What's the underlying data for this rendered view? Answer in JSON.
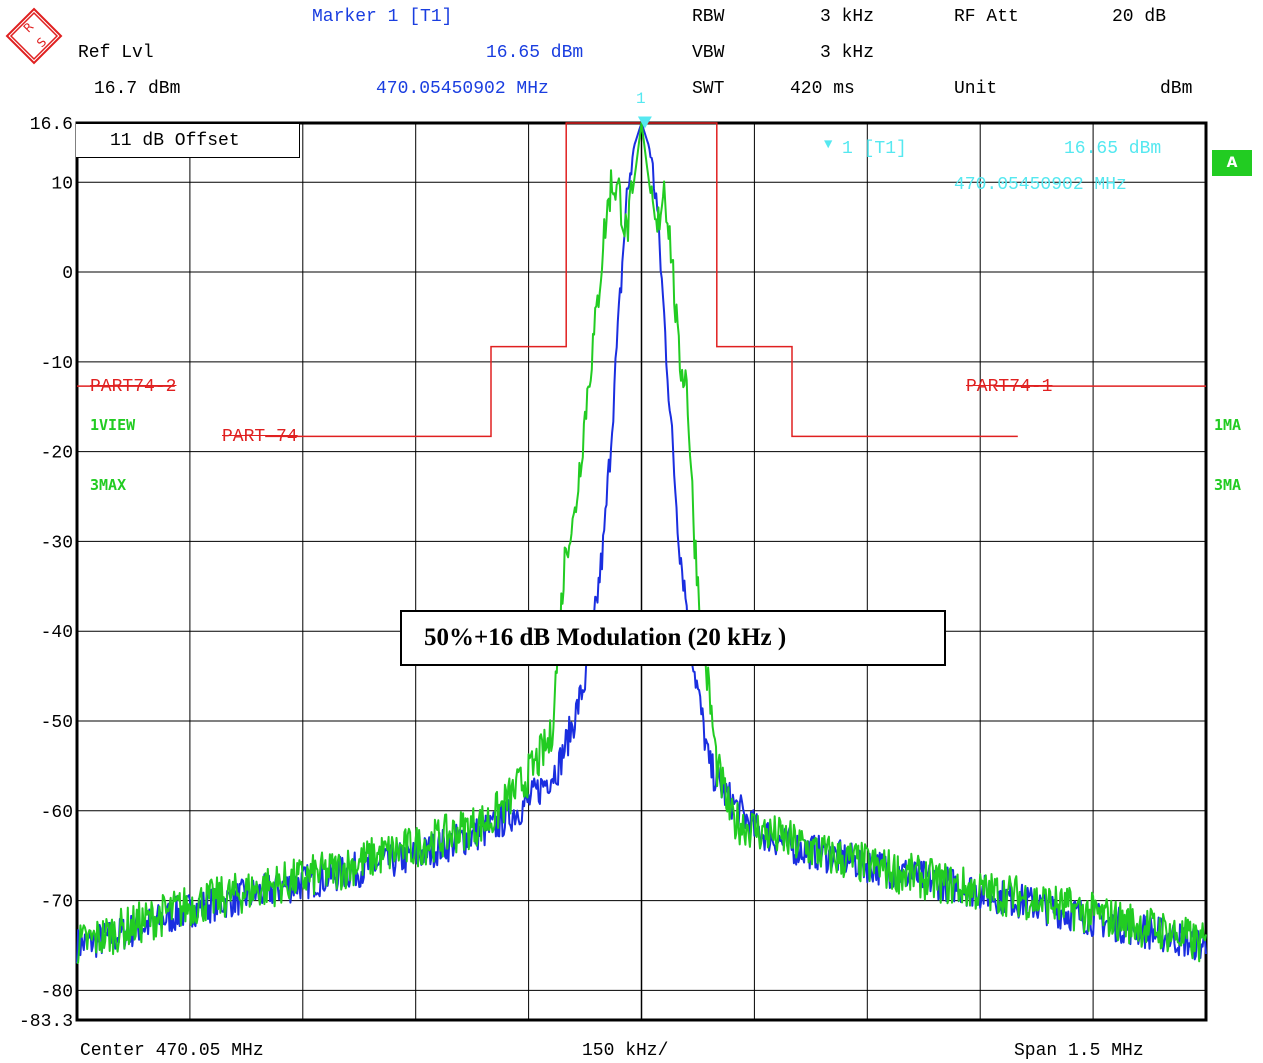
{
  "header": {
    "marker_title": "Marker 1 [T1]",
    "ref_lvl_label": "Ref Lvl",
    "ref_lvl_value": "16.7 dBm",
    "marker_level": "16.65 dBm",
    "marker_freq": "470.05450902 MHz",
    "rbw_label": "RBW",
    "rbw_value": "3 kHz",
    "vbw_label": "VBW",
    "vbw_value": "3 kHz",
    "swt_label": "SWT",
    "swt_value": "420 ms",
    "rfatt_label": "RF Att",
    "rfatt_value": "20 dB",
    "unit_label": "Unit",
    "unit_value": "dBm",
    "logo_text": "R&S"
  },
  "annotations": {
    "offset": "11 dB Offset",
    "marker_id": "1",
    "marker_box_name": "1 [T1]",
    "marker_box_level": "16.65 dBm",
    "marker_box_freq": "470.05450902 MHz",
    "badge": "A",
    "trace1_left": "1VIEW",
    "trace3_left": "3MAX",
    "trace1_right": "1MA",
    "trace3_right": "3MA",
    "limit_left2": "PART74-2",
    "limit_right1": "PART74-1",
    "limit_part": "PART-74",
    "box_text": "50%+16 dB Modulation (20 kHz )"
  },
  "footer": {
    "center": "Center 470.05 MHz",
    "div": "150 kHz/",
    "span": "Span 1.5 MHz"
  },
  "colors": {
    "trace_green": "#22cc22",
    "trace_blue": "#1a2ee0",
    "limit_red": "#e02020",
    "marker_cyan": "#55e8f0"
  },
  "chart_data": {
    "type": "line",
    "xlabel": "",
    "ylabel": "",
    "x_range_mhz": [
      469.3,
      470.8
    ],
    "y_range_dbm": [
      -83.3,
      16.6
    ],
    "y_ticks": [
      "16.6",
      "10",
      "0",
      "-10",
      "-20",
      "-30",
      "-40",
      "-50",
      "-60",
      "-70",
      "-80",
      "-83.3"
    ],
    "grid": true,
    "series": [
      {
        "name": "1VIEW",
        "color": "#1a2ee0",
        "x_offset_khz": [
          -750,
          -700,
          -650,
          -600,
          -550,
          -500,
          -450,
          -400,
          -350,
          -300,
          -250,
          -200,
          -150,
          -130,
          -110,
          -90,
          -70,
          -50,
          -40,
          -30,
          -20,
          -10,
          0,
          10,
          20,
          30,
          40,
          50,
          70,
          90,
          110,
          130,
          150,
          200,
          250,
          300,
          350,
          400,
          450,
          500,
          550,
          600,
          650,
          700,
          750
        ],
        "values": [
          -75,
          -74,
          -72.5,
          -71,
          -70,
          -69,
          -68,
          -67,
          -66,
          -65,
          -63.5,
          -62,
          -59,
          -57,
          -55,
          -50,
          -44,
          -30,
          -18,
          -5,
          8,
          14,
          16.6,
          14,
          8,
          -5,
          -18,
          -30,
          -44,
          -55,
          -58,
          -60,
          -62,
          -64,
          -65,
          -66,
          -67,
          -68,
          -69,
          -70,
          -71,
          -72,
          -73,
          -74,
          -75
        ]
      },
      {
        "name": "3MAX",
        "color": "#22cc22",
        "x_offset_khz": [
          -750,
          -700,
          -650,
          -600,
          -550,
          -500,
          -450,
          -400,
          -350,
          -300,
          -250,
          -200,
          -150,
          -120,
          -100,
          -90,
          -80,
          -70,
          -60,
          -50,
          -40,
          -30,
          -20,
          -10,
          0,
          10,
          20,
          30,
          40,
          50,
          60,
          70,
          80,
          90,
          100,
          120,
          150,
          200,
          250,
          300,
          350,
          400,
          450,
          500,
          550,
          600,
          650,
          700,
          750
        ],
        "values": [
          -75,
          -73.5,
          -72,
          -70.5,
          -69.5,
          -68.5,
          -67.5,
          -66.5,
          -65,
          -64,
          -62.5,
          -61,
          -56,
          -52,
          -30,
          -28,
          -20,
          -12,
          -5,
          4,
          10,
          9,
          4,
          10,
          16.6,
          10,
          4,
          10,
          2,
          -10,
          -12,
          -29,
          -40,
          -47,
          -55,
          -61,
          -62,
          -63.5,
          -65,
          -66,
          -67,
          -68,
          -69,
          -69.5,
          -70.5,
          -71.5,
          -72.5,
          -73.5,
          -75
        ]
      },
      {
        "name": "PART74-2",
        "color": "#e02020",
        "x_offset_khz": [
          -750,
          -620
        ],
        "values": [
          -12.7,
          -12.7
        ]
      },
      {
        "name": "PART74-1",
        "color": "#e02020",
        "x_offset_khz": [
          470,
          750
        ],
        "values": [
          -12.7,
          -12.7
        ]
      },
      {
        "name": "PART-74",
        "color": "#e02020",
        "x_offset_khz": [
          -500,
          -200,
          -200,
          -100,
          -100,
          100,
          100,
          200,
          200,
          500
        ],
        "values": [
          -18.3,
          -18.3,
          -8.3,
          -8.3,
          16.6,
          16.6,
          -8.3,
          -8.3,
          -18.3,
          -18.3
        ]
      }
    ],
    "marker": {
      "name": "1",
      "x_offset_khz": 4.5,
      "value": 16.65
    }
  }
}
